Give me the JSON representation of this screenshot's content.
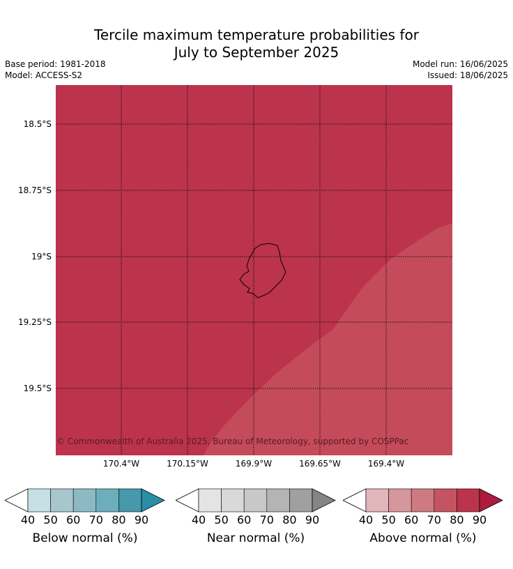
{
  "header": {
    "title_line1": "Tercile maximum temperature probabilities for",
    "title_line2": "July to September 2025",
    "base_period": "Base period: 1981-2018",
    "model": "Model: ACCESS-S2",
    "model_run": "Model run: 16/06/2025",
    "issued": "Issued: 18/06/2025"
  },
  "map": {
    "latitude_labels": [
      "18.5°S",
      "18.75°S",
      "19°S",
      "19.25°S",
      "19.5°S"
    ],
    "longitude_labels": [
      "170.4°W",
      "170.15°W",
      "169.9°W",
      "169.65°W",
      "169.4°W"
    ],
    "copyright": "© Commonwealth of Australia 2025, Bureau of Meteorology, supported by COSPPac",
    "fill_colors": {
      "above_80": "#bc334c",
      "above_70": "#c44b5a"
    }
  },
  "colorbars": [
    {
      "label": "Below normal (%)",
      "ticks": [
        "40",
        "50",
        "60",
        "70",
        "80",
        "90"
      ],
      "colors": [
        "#c7e0e6",
        "#a6c7cd",
        "#8cb9c4",
        "#6daebd",
        "#4599aa",
        "#2a8ea5"
      ]
    },
    {
      "label": "Near normal (%)",
      "ticks": [
        "40",
        "50",
        "60",
        "70",
        "80",
        "90"
      ],
      "colors": [
        "#e4e4e4",
        "#d9d9d9",
        "#c8c8c8",
        "#b4b4b4",
        "#a0a0a0",
        "#858585"
      ]
    },
    {
      "label": "Above normal (%)",
      "ticks": [
        "40",
        "50",
        "60",
        "70",
        "80",
        "90"
      ],
      "colors": [
        "#e2b5bb",
        "#d6969e",
        "#cf7a82",
        "#c4545f",
        "#bc334c",
        "#ad1c3c"
      ]
    }
  ]
}
